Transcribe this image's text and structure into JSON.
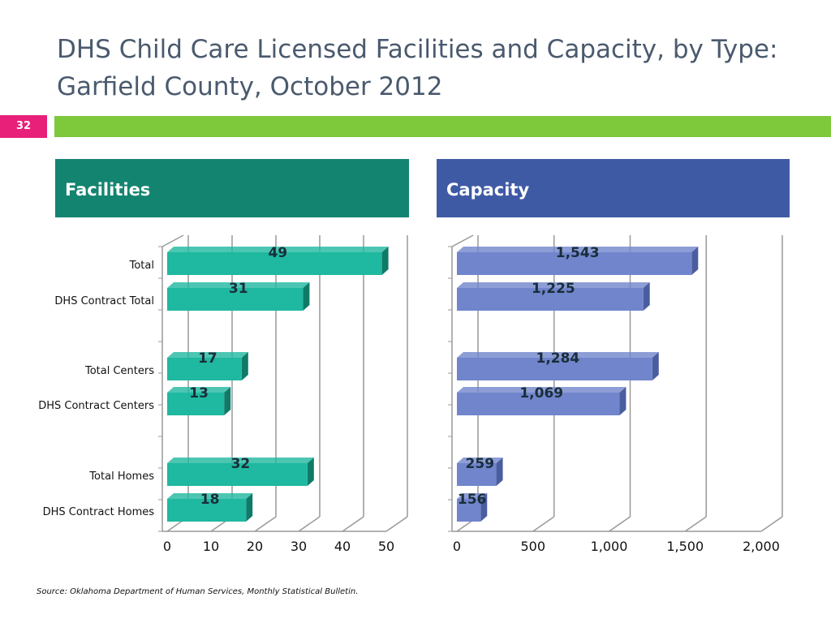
{
  "slide": {
    "title": "DHS Child Care Licensed Facilities and Capacity, by Type:  Garfield County, October 2012",
    "page_number": "32",
    "source": "Source:  Oklahoma Department of Human Services, Monthly Statistical Bulletin."
  },
  "panels": {
    "facilities_header": "Facilities",
    "capacity_header": "Capacity"
  },
  "colors": {
    "facilities_bar": "#1fb8a0",
    "facilities_bar_side": "#0f7a68",
    "capacity_bar": "#7185cc",
    "capacity_bar_side": "#4a5d9e",
    "page_badge": "#e8207a",
    "rule": "#7dc83b"
  },
  "chart_data": [
    {
      "type": "bar",
      "orientation": "horizontal",
      "categories": [
        "Total",
        "DHS Contract Total",
        "Total Centers",
        "DHS Contract Centers",
        "Total Homes",
        "DHS Contract Homes"
      ],
      "values": [
        49,
        31,
        17,
        13,
        32,
        18
      ],
      "value_labels": [
        "49",
        "31",
        "17",
        "13",
        "32",
        "18"
      ],
      "xlim": [
        0,
        50
      ],
      "ticks": [
        "0",
        "10",
        "20",
        "30",
        "40",
        "50"
      ],
      "grid": true
    },
    {
      "type": "bar",
      "orientation": "horizontal",
      "categories": [
        "Total",
        "DHS Contract Total",
        "Total Centers",
        "DHS Contract Centers",
        "Total Homes",
        "DHS Contract Homes"
      ],
      "values": [
        1543,
        1225,
        1284,
        1069,
        259,
        156
      ],
      "value_labels": [
        "1,543",
        "1,225",
        "1,284",
        "1,069",
        "259",
        "156"
      ],
      "xlim": [
        0,
        2000
      ],
      "ticks": [
        "0",
        "500",
        "1,000",
        "1,500",
        "2,000"
      ],
      "grid": true
    }
  ]
}
